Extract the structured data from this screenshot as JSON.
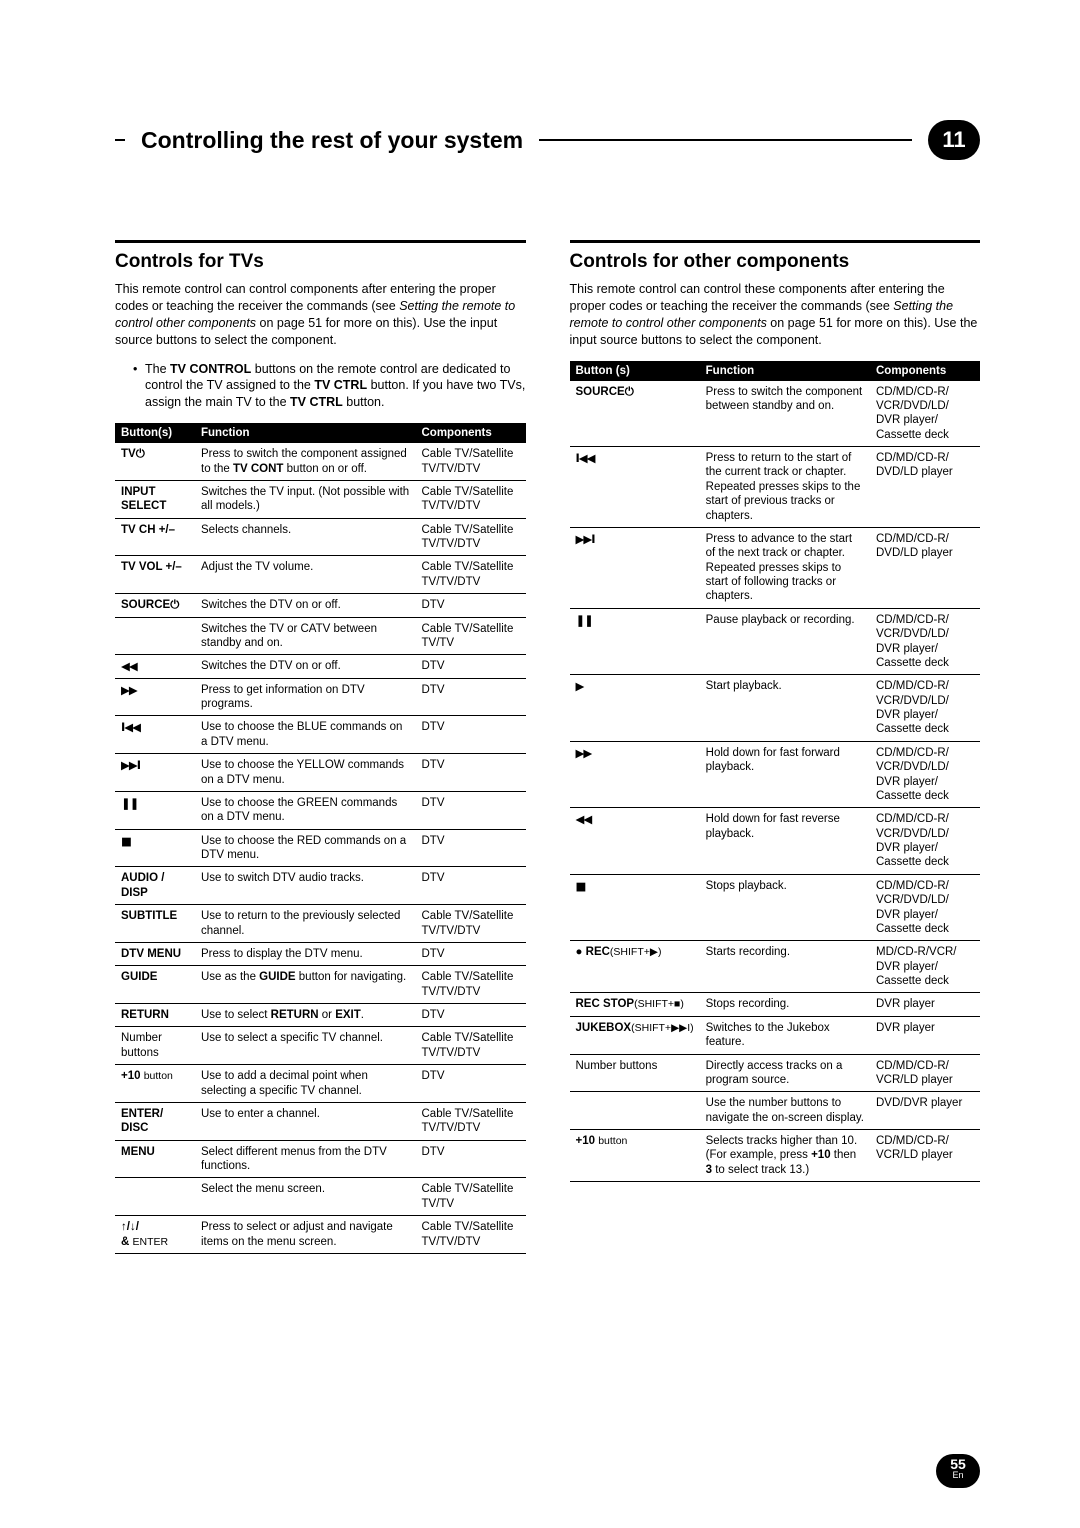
{
  "chapter": {
    "title": "Controlling the rest of your system",
    "number": "11"
  },
  "left": {
    "title": "Controls for TVs",
    "intro_a": "This remote control can control components after entering the proper codes or teaching the receiver the commands (see ",
    "intro_i": "Setting the remote to control other components",
    "intro_b": " on page 51 for more on this). Use the input source buttons to select the component.",
    "note_a": "The ",
    "note_b": "TV CONTROL",
    "note_c": " buttons on the remote control are dedicated to control the TV assigned to the ",
    "note_d": "TV CTRL",
    "note_e": " button. If you have two TVs, assign the main TV to the ",
    "note_f": "TV CTRL",
    "note_g": " button.",
    "headers": {
      "a": "Button(s)",
      "b": "Function",
      "c": "Components"
    },
    "rows": [
      {
        "b": "TV⏻",
        "f_a": "Press to switch the component assigned to the ",
        "f_b": "TV CONT",
        "f_c": " button on or off.",
        "c": "Cable TV/Satellite TV/TV/DTV"
      },
      {
        "b": "INPUT SELECT",
        "f": "Switches the TV input. (Not possible with all models.)",
        "c": "Cable TV/Satellite TV/TV/DTV"
      },
      {
        "b": "TV CH +/–",
        "f": "Selects channels.",
        "c": "Cable TV/Satellite TV/TV/DTV"
      },
      {
        "b": "TV VOL +/–",
        "f": "Adjust the TV volume.",
        "c": "Cable TV/Satellite TV/TV/DTV"
      },
      {
        "b": "SOURCE⏻",
        "f": "Switches the DTV on or off.",
        "c": "DTV"
      },
      {
        "b": "",
        "nb": true,
        "f": "Switches the TV or CATV between standby and on.",
        "c": "Cable TV/Satellite TV/TV"
      },
      {
        "b": "◀◀",
        "icon": true,
        "f": "Switches the DTV on or off.",
        "c": "DTV"
      },
      {
        "b": "▶▶",
        "icon": true,
        "f": "Press to get information on DTV programs.",
        "c": "DTV"
      },
      {
        "b": "I◀◀",
        "icon": true,
        "f": "Use to choose the BLUE commands on a DTV menu.",
        "c": "DTV"
      },
      {
        "b": "▶▶I",
        "icon": true,
        "f": "Use to choose the YELLOW commands on a DTV menu.",
        "c": "DTV"
      },
      {
        "b": "❚❚",
        "icon": true,
        "f": "Use to choose the GREEN commands on a DTV menu.",
        "c": "DTV"
      },
      {
        "b": "■",
        "icon": true,
        "f": "Use to choose the RED commands on a DTV menu.",
        "c": "DTV"
      },
      {
        "b": "AUDIO / DISP",
        "f": "Use to switch DTV audio tracks.",
        "c": "DTV"
      },
      {
        "b": "SUBTITLE",
        "f": "Use to return to the previously selected channel.",
        "c": "Cable TV/Satellite TV/TV/DTV"
      },
      {
        "b": "DTV MENU",
        "f": "Press to display the DTV menu.",
        "c": "DTV"
      },
      {
        "b": "GUIDE",
        "f_a": "Use as the ",
        "f_b": "GUIDE",
        "f_c": " button for navigating.",
        "c": "Cable TV/Satellite TV/TV/DTV"
      },
      {
        "b": "RETURN",
        "f_a": "Use to select ",
        "f_b": "RETURN",
        "f_c": " or ",
        "f_d": "EXIT",
        "f_e": ".",
        "c": "DTV"
      },
      {
        "b": "Number buttons",
        "nb": true,
        "f": "Use to select a specific TV channel.",
        "c": "Cable TV/Satellite TV/TV/DTV"
      },
      {
        "b_a": "+10 ",
        "b_b": "button",
        "f": "Use to add a decimal point when selecting a specific TV channel.",
        "c": "DTV"
      },
      {
        "b": "ENTER/ DISC",
        "f": "Use to enter a channel.",
        "c": "Cable TV/Satellite TV/TV/DTV"
      },
      {
        "b": "MENU",
        "f": "Select different menus from the DTV functions.",
        "c": "DTV"
      },
      {
        "b": "",
        "nb": true,
        "f": "Select the menu screen.",
        "c": "Cable TV/Satellite TV/TV"
      },
      {
        "b_a": "↑/↓/\n& ",
        "b_b": "ENTER",
        "f": "Press to select or adjust and navigate items on the menu screen.",
        "c": "Cable TV/Satellite TV/TV/DTV"
      }
    ]
  },
  "right": {
    "title": "Controls for other components",
    "intro_a": "This remote control can control these components after entering the proper codes or teaching the receiver the commands (see ",
    "intro_i": "Setting the remote to control other components",
    "intro_b": " on page 51 for more on this). Use the input source buttons to select the component.",
    "headers": {
      "a": "Button (s)",
      "b": "Function",
      "c": "Components"
    },
    "rows": [
      {
        "b": "SOURCE⏻",
        "f": "Press to switch the component between standby and on.",
        "c": "CD/MD/CD-R/\nVCR/DVD/LD/\nDVR player/\nCassette deck"
      },
      {
        "b": "I◀◀",
        "icon": true,
        "f": "Press to return to the start of the current track or chapter. Repeated presses skips to the start of previous tracks or chapters.",
        "c": "CD/MD/CD-R/\nDVD/LD player"
      },
      {
        "b": "▶▶I",
        "icon": true,
        "f": "Press to advance to the start of the next track or chapter. Repeated presses skips to start of following tracks or chapters.",
        "c": "CD/MD/CD-R/\nDVD/LD player"
      },
      {
        "b": "❚❚",
        "icon": true,
        "f": "Pause playback or recording.",
        "c": "CD/MD/CD-R/\nVCR/DVD/LD/\nDVR player/\nCassette deck"
      },
      {
        "b": "▶",
        "icon": true,
        "f": "Start playback.",
        "c": "CD/MD/CD-R/\nVCR/DVD/LD/\nDVR player/\nCassette deck"
      },
      {
        "b": "▶▶",
        "icon": true,
        "f": "Hold down for fast forward playback.",
        "c": "CD/MD/CD-R/\nVCR/DVD/LD/\nDVR player/\nCassette deck"
      },
      {
        "b": "◀◀",
        "icon": true,
        "f": "Hold down for fast reverse playback.",
        "c": "CD/MD/CD-R/\nVCR/DVD/LD/\nDVR player/\nCassette deck"
      },
      {
        "b": "■",
        "icon": true,
        "f": "Stops playback.",
        "c": "CD/MD/CD-R/\nVCR/DVD/LD/\nDVR player/\nCassette deck"
      },
      {
        "b_a": "● REC",
        "b_b": "(SHIFT+▶)",
        "f": "Starts recording.",
        "c": "MD/CD-R/VCR/\nDVR player/\nCassette deck"
      },
      {
        "b_a": "REC STOP",
        "b_b": "(SHIFT+■)",
        "f": "Stops recording.",
        "c": "DVR player"
      },
      {
        "b_a": "JUKEBOX",
        "b_b": "(SHIFT+▶▶I)",
        "f": "Switches to the Jukebox feature.",
        "c": "DVR player"
      },
      {
        "b": "Number buttons",
        "nb": true,
        "f": "Directly access tracks on a program source.",
        "c": "CD/MD/CD-R/\nVCR/LD player"
      },
      {
        "b": "",
        "nb": true,
        "f": "Use the number buttons to navigate the on-screen display.",
        "c": "DVD/DVR player"
      },
      {
        "b_a": "+10 ",
        "b_b": "button",
        "f_a": "Selects tracks higher than 10. (For example, press ",
        "f_b": "+10",
        "f_c": " then ",
        "f_d": "3",
        "f_e": " to select track 13.)",
        "c": "CD/MD/CD-R/\nVCR/LD player"
      }
    ]
  },
  "pageNum": "55",
  "pageLang": "En"
}
